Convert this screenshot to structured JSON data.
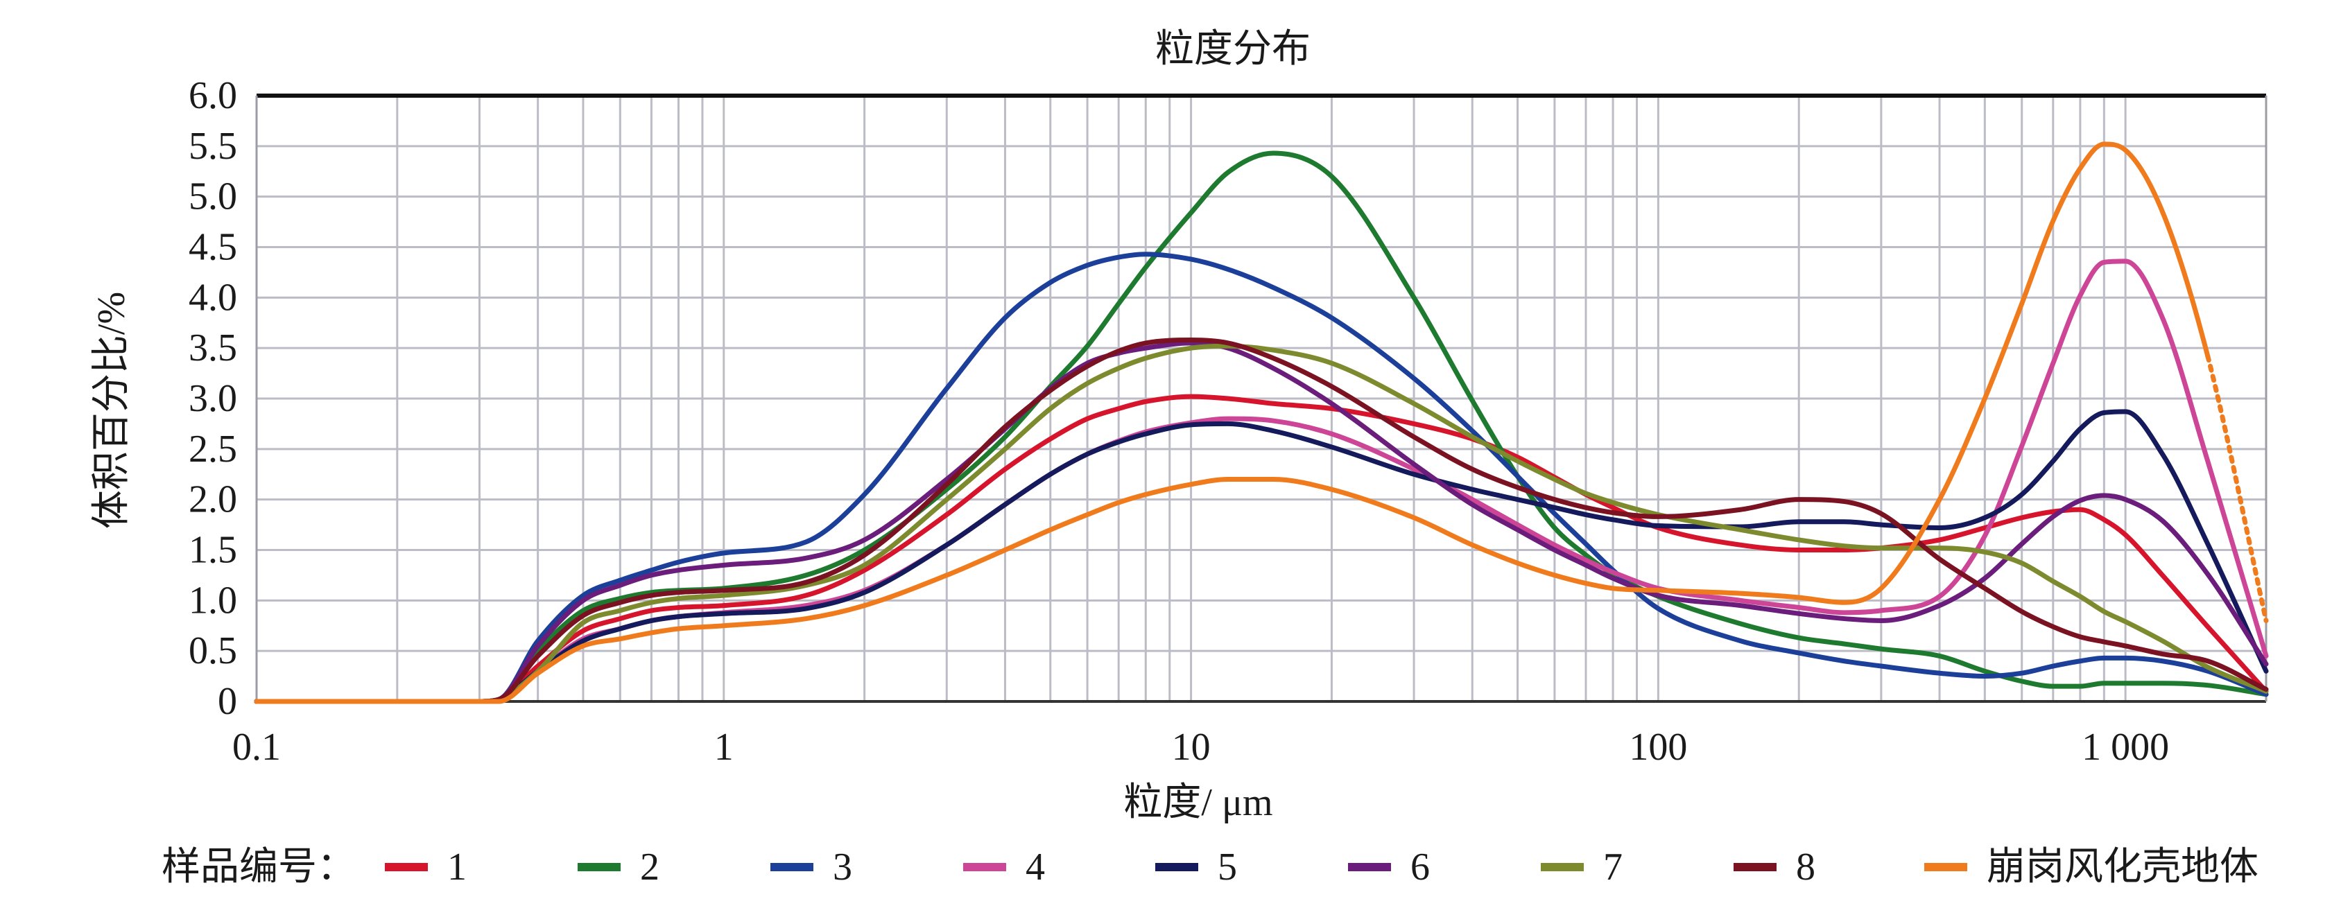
{
  "chart_data": {
    "type": "line",
    "title": "粒度分布",
    "xlabel": "粒度/ μm",
    "ylabel": "体积百分比/%",
    "x_scale": "log",
    "xlim": [
      0.1,
      2000
    ],
    "ylim": [
      0,
      6
    ],
    "grid": true,
    "x_ticks": [
      0.1,
      1,
      10,
      100,
      1000
    ],
    "x_tick_labels": [
      "0.1",
      "1",
      "10",
      "100",
      "1 000"
    ],
    "y_ticks": [
      0,
      0.5,
      1,
      1.5,
      2,
      2.5,
      3,
      3.5,
      4,
      4.5,
      5,
      5.5,
      6
    ],
    "y_tick_labels": [
      "0",
      "0.5",
      "1.0",
      "1.5",
      "2.0",
      "2.5",
      "3.0",
      "3.5",
      "4.0",
      "4.5",
      "5.0",
      "5.5",
      "6.0"
    ],
    "legend": {
      "title": "样品编号：",
      "position": "bottom"
    },
    "x": [
      0.1,
      0.3,
      0.33,
      0.4,
      0.5,
      0.6,
      0.7,
      0.8,
      1,
      1.5,
      2,
      3,
      4,
      5,
      6,
      7,
      8,
      10,
      12,
      15,
      20,
      30,
      40,
      50,
      60,
      70,
      80,
      100,
      150,
      200,
      250,
      300,
      400,
      500,
      600,
      700,
      800,
      900,
      1000,
      1200,
      1500,
      2000
    ],
    "series": [
      {
        "name": "1",
        "color": "#d6142c",
        "values": [
          0,
          0,
          0.02,
          0.35,
          0.7,
          0.82,
          0.9,
          0.93,
          0.95,
          1.05,
          1.3,
          1.85,
          2.3,
          2.6,
          2.8,
          2.9,
          2.97,
          3.02,
          3.0,
          2.95,
          2.9,
          2.75,
          2.6,
          2.42,
          2.22,
          2.05,
          1.92,
          1.72,
          1.55,
          1.5,
          1.5,
          1.52,
          1.6,
          1.72,
          1.82,
          1.88,
          1.9,
          1.8,
          1.65,
          1.25,
          0.74,
          0.1
        ]
      },
      {
        "name": "2",
        "color": "#1d7a2e",
        "values": [
          0,
          0,
          0.02,
          0.5,
          0.9,
          1.02,
          1.08,
          1.1,
          1.12,
          1.25,
          1.5,
          2.1,
          2.62,
          3.12,
          3.52,
          3.94,
          4.3,
          4.84,
          5.24,
          5.43,
          5.2,
          4.0,
          2.98,
          2.23,
          1.72,
          1.45,
          1.26,
          1.04,
          0.77,
          0.63,
          0.57,
          0.52,
          0.45,
          0.3,
          0.2,
          0.15,
          0.15,
          0.18,
          0.18,
          0.18,
          0.16,
          0.07
        ]
      },
      {
        "name": "3",
        "color": "#1c3f9a",
        "values": [
          0,
          0,
          0.02,
          0.6,
          1.05,
          1.2,
          1.3,
          1.38,
          1.47,
          1.58,
          2.05,
          3.1,
          3.8,
          4.15,
          4.32,
          4.4,
          4.43,
          4.38,
          4.28,
          4.1,
          3.8,
          3.2,
          2.68,
          2.23,
          1.86,
          1.56,
          1.3,
          0.92,
          0.6,
          0.48,
          0.4,
          0.35,
          0.28,
          0.25,
          0.28,
          0.35,
          0.4,
          0.43,
          0.43,
          0.4,
          0.3,
          0.07
        ]
      },
      {
        "name": "4",
        "color": "#cc4596",
        "values": [
          0,
          0,
          0.02,
          0.3,
          0.62,
          0.72,
          0.8,
          0.84,
          0.88,
          0.95,
          1.1,
          1.55,
          1.95,
          2.25,
          2.45,
          2.58,
          2.67,
          2.76,
          2.8,
          2.78,
          2.65,
          2.3,
          2.0,
          1.75,
          1.55,
          1.4,
          1.28,
          1.12,
          1.0,
          0.93,
          0.88,
          0.9,
          1.04,
          1.64,
          2.53,
          3.35,
          4.02,
          4.35,
          4.36,
          3.8,
          2.38,
          0.45
        ]
      },
      {
        "name": "5",
        "color": "#141a5c",
        "values": [
          0,
          0,
          0.02,
          0.3,
          0.6,
          0.72,
          0.8,
          0.84,
          0.87,
          0.92,
          1.08,
          1.55,
          1.95,
          2.25,
          2.45,
          2.57,
          2.65,
          2.74,
          2.75,
          2.68,
          2.52,
          2.25,
          2.1,
          2.0,
          1.92,
          1.85,
          1.8,
          1.74,
          1.73,
          1.78,
          1.78,
          1.75,
          1.72,
          1.82,
          2.05,
          2.38,
          2.7,
          2.86,
          2.87,
          2.45,
          1.56,
          0.3
        ]
      },
      {
        "name": "6",
        "color": "#6b1d7c",
        "values": [
          0,
          0,
          0.02,
          0.55,
          1.0,
          1.15,
          1.25,
          1.3,
          1.35,
          1.42,
          1.6,
          2.2,
          2.7,
          3.1,
          3.35,
          3.45,
          3.5,
          3.55,
          3.5,
          3.3,
          2.95,
          2.35,
          1.95,
          1.7,
          1.5,
          1.35,
          1.22,
          1.05,
          0.95,
          0.87,
          0.82,
          0.8,
          0.95,
          1.22,
          1.56,
          1.83,
          1.99,
          2.04,
          2.0,
          1.79,
          1.26,
          0.37
        ]
      },
      {
        "name": "7",
        "color": "#7d8a2e",
        "values": [
          0,
          0,
          0.02,
          0.3,
          0.78,
          0.9,
          0.98,
          1.02,
          1.05,
          1.15,
          1.35,
          2.0,
          2.5,
          2.9,
          3.15,
          3.3,
          3.4,
          3.5,
          3.52,
          3.48,
          3.35,
          2.95,
          2.62,
          2.38,
          2.2,
          2.06,
          1.97,
          1.85,
          1.7,
          1.6,
          1.54,
          1.52,
          1.52,
          1.48,
          1.37,
          1.19,
          1.04,
          0.89,
          0.79,
          0.6,
          0.34,
          0.1
        ]
      },
      {
        "name": "8",
        "color": "#7b1222",
        "values": [
          0,
          0,
          0.02,
          0.45,
          0.85,
          0.98,
          1.05,
          1.08,
          1.1,
          1.18,
          1.45,
          2.15,
          2.72,
          3.08,
          3.32,
          3.47,
          3.55,
          3.58,
          3.55,
          3.4,
          3.12,
          2.62,
          2.3,
          2.12,
          2.0,
          1.92,
          1.87,
          1.83,
          1.9,
          2.0,
          1.98,
          1.86,
          1.41,
          1.12,
          0.89,
          0.74,
          0.64,
          0.59,
          0.55,
          0.47,
          0.4,
          0.12
        ]
      },
      {
        "name": "崩岗风化壳地体",
        "color": "#f07b1c",
        "values": [
          0,
          0,
          0,
          0.28,
          0.55,
          0.62,
          0.68,
          0.72,
          0.75,
          0.82,
          0.95,
          1.25,
          1.5,
          1.7,
          1.85,
          1.97,
          2.05,
          2.15,
          2.2,
          2.2,
          2.1,
          1.82,
          1.55,
          1.37,
          1.25,
          1.17,
          1.12,
          1.1,
          1.07,
          1.03,
          0.98,
          1.12,
          2.0,
          3.0,
          3.94,
          4.76,
          5.28,
          5.52,
          5.46,
          4.85,
          3.42,
          0.8
        ]
      }
    ]
  }
}
